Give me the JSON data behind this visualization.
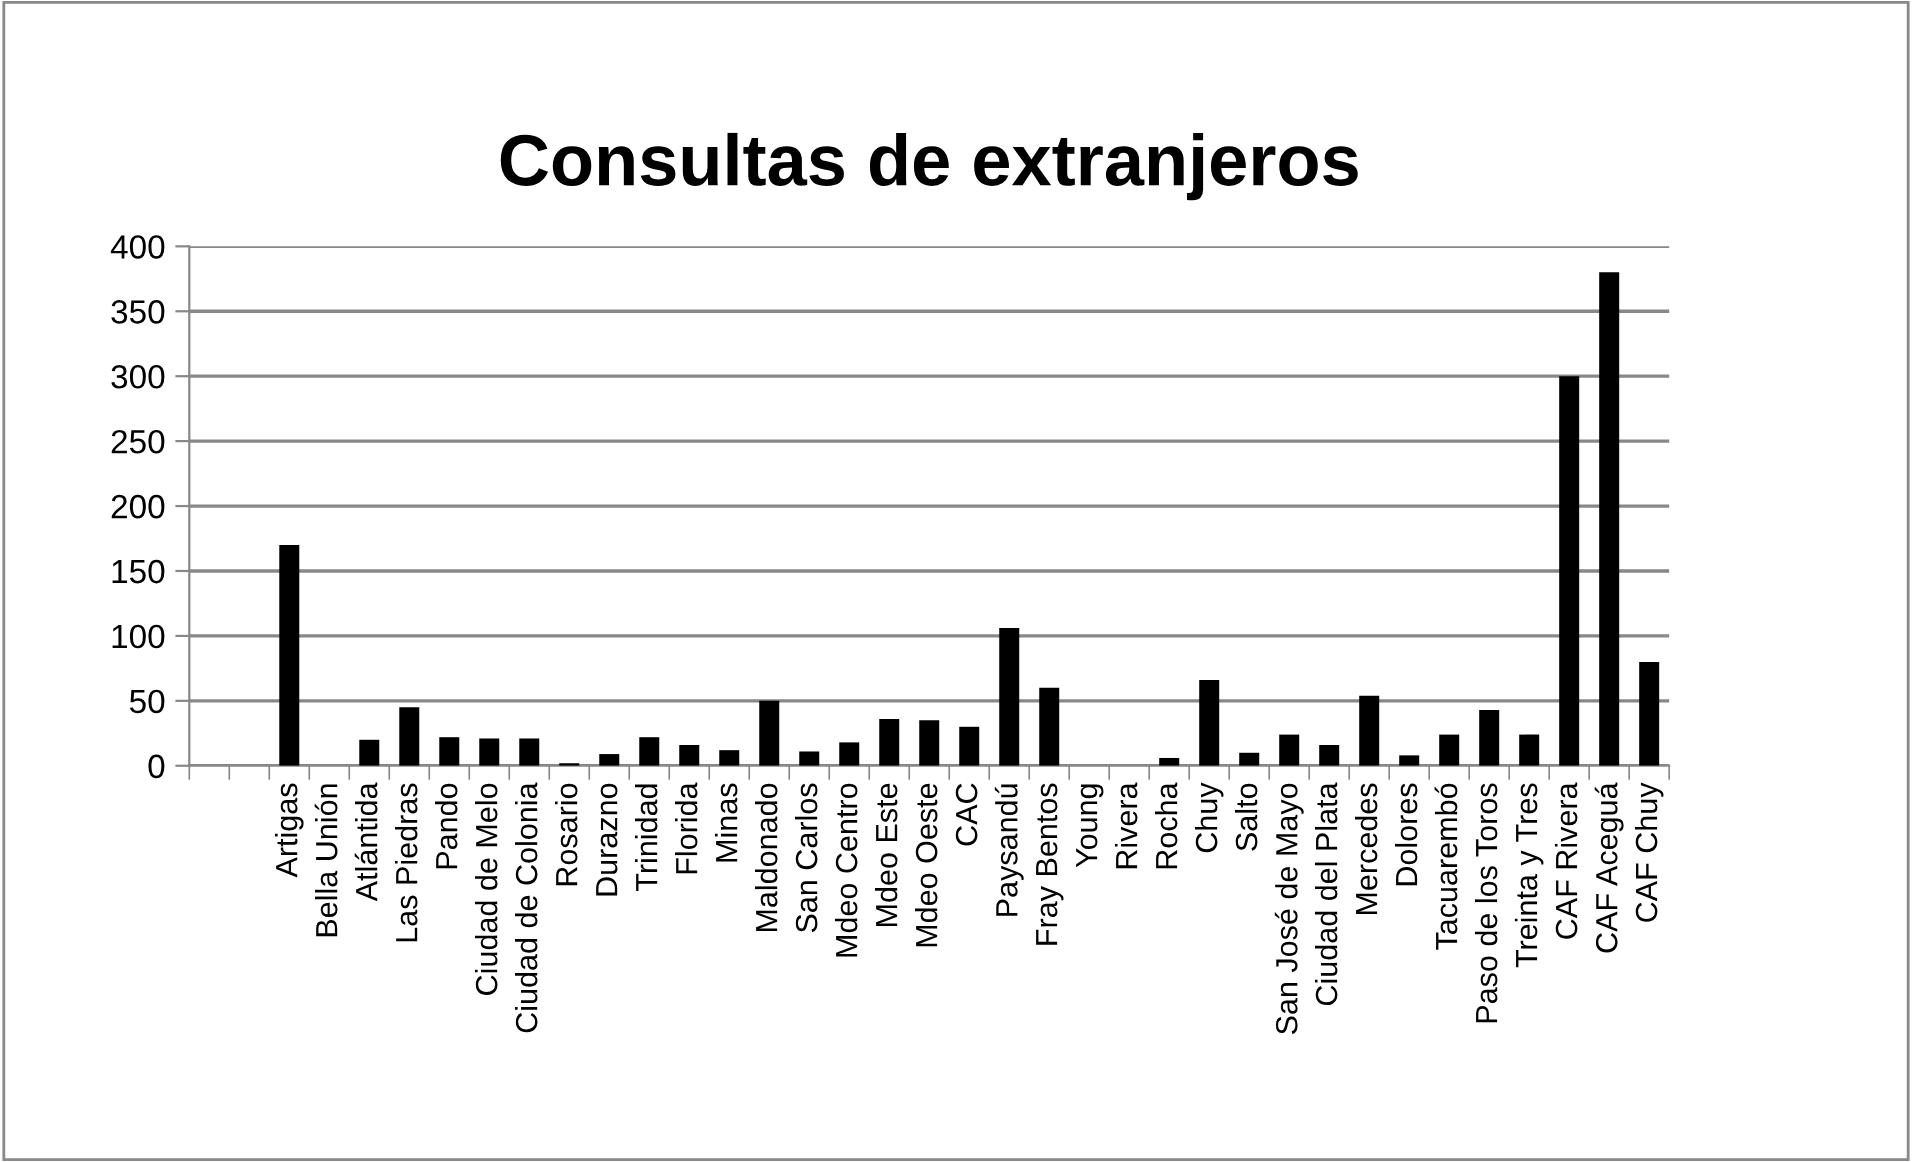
{
  "chart_data": {
    "type": "bar",
    "title": "Consultas de extranjeros",
    "categories": [
      null,
      null,
      "Artigas",
      "Bella Unión",
      "Atlántida",
      "Las Piedras",
      "Pando",
      "Ciudad de Melo",
      "Ciudad de Colonia",
      "Rosario",
      "Durazno",
      "Trinidad",
      "Florida",
      "Minas",
      "Maldonado",
      "San Carlos",
      "Mdeo Centro",
      "Mdeo Este",
      "Mdeo Oeste",
      "CAC",
      "Paysandú",
      "Fray Bentos",
      "Young",
      "Rivera",
      "Rocha",
      "Chuy",
      "Salto",
      "San José de Mayo",
      "Ciudad del Plata",
      "Mercedes",
      "Dolores",
      "Tacuarembó",
      "Paso de los Toros",
      "Treinta y Tres",
      "CAF Rivera",
      "CAF Aceguá",
      "CAF Chuy"
    ],
    "values": [
      0,
      0,
      170,
      0,
      20,
      45,
      22,
      21,
      21,
      2,
      9,
      22,
      16,
      12,
      50,
      11,
      18,
      36,
      35,
      30,
      106,
      60,
      0,
      0,
      6,
      66,
      10,
      24,
      16,
      54,
      8,
      24,
      43,
      24,
      300,
      380,
      80
    ],
    "color": "#000000",
    "ylim": [
      0,
      400
    ],
    "yticks": [
      0,
      50,
      100,
      150,
      200,
      250,
      300,
      350,
      400
    ],
    "grid": "y",
    "legend": false
  }
}
